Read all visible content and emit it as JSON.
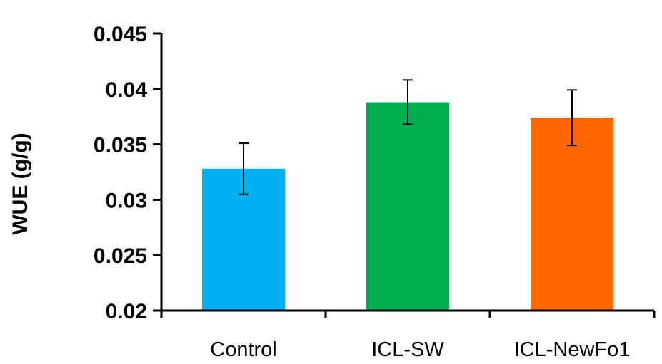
{
  "chart_data": {
    "type": "bar",
    "title": "",
    "xlabel": "",
    "ylabel": "WUE (g/g)",
    "ylim": [
      0.02,
      0.045
    ],
    "yticks": [
      "0.02",
      "0.025",
      "0.03",
      "0.035",
      "0.04",
      "0.045"
    ],
    "categories": [
      "Control",
      "ICL-SW",
      "ICL-NewFo1"
    ],
    "values": [
      0.0328,
      0.0388,
      0.0374
    ],
    "errors": [
      0.0023,
      0.002,
      0.0025
    ],
    "colors": [
      "#00b0f0",
      "#00b050",
      "#ff6600"
    ],
    "grid": false,
    "legend": "none"
  }
}
